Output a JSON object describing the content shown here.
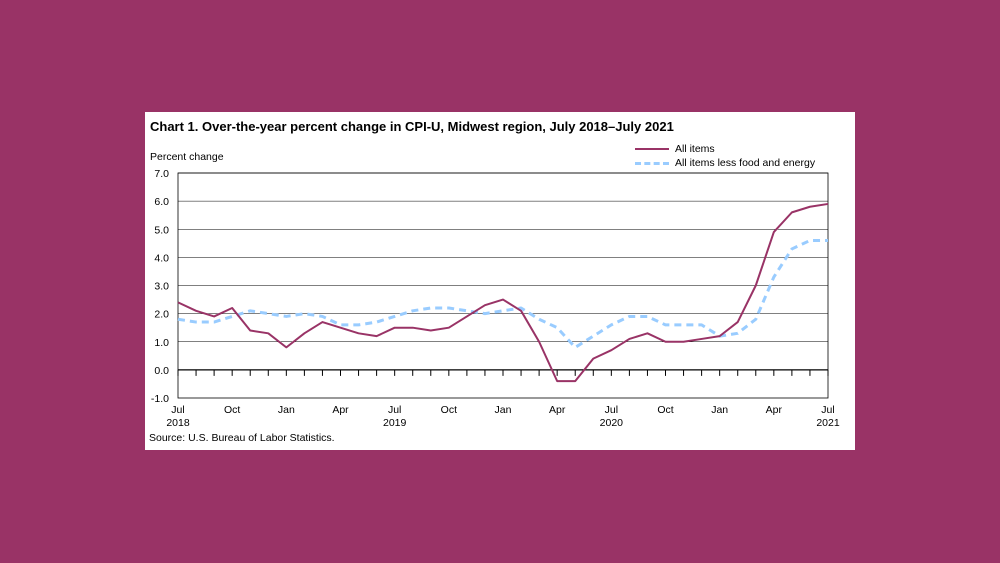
{
  "chart_data": {
    "type": "line",
    "title": "Chart 1. Over-the-year percent change in CPI-U, Midwest region, July 2018–July  2021",
    "ylabel": "Percent change",
    "xlabel": "",
    "ylim": [
      -1.0,
      7.0
    ],
    "yticks": [
      "7.0",
      "6.0",
      "5.0",
      "4.0",
      "3.0",
      "2.0",
      "1.0",
      "0.0",
      "-1.0"
    ],
    "ytick_values": [
      7,
      6,
      5,
      4,
      3,
      2,
      1,
      0,
      -1
    ],
    "grid": true,
    "legend_position": "top-right",
    "x_labels": [
      {
        "index": 0,
        "month": "Jul",
        "year": "2018"
      },
      {
        "index": 3,
        "month": "Oct",
        "year": ""
      },
      {
        "index": 6,
        "month": "Jan",
        "year": ""
      },
      {
        "index": 9,
        "month": "Apr",
        "year": ""
      },
      {
        "index": 12,
        "month": "Jul",
        "year": "2019"
      },
      {
        "index": 15,
        "month": "Oct",
        "year": ""
      },
      {
        "index": 18,
        "month": "Jan",
        "year": ""
      },
      {
        "index": 21,
        "month": "Apr",
        "year": ""
      },
      {
        "index": 24,
        "month": "Jul",
        "year": "2020"
      },
      {
        "index": 27,
        "month": "Oct",
        "year": ""
      },
      {
        "index": 30,
        "month": "Jan",
        "year": ""
      },
      {
        "index": 33,
        "month": "Apr",
        "year": ""
      },
      {
        "index": 36,
        "month": "Jul",
        "year": "2021"
      }
    ],
    "series": [
      {
        "name": "All items",
        "color": "#993366",
        "style": "solid",
        "values": [
          2.4,
          2.1,
          1.9,
          2.2,
          1.4,
          1.3,
          0.8,
          1.3,
          1.7,
          1.5,
          1.3,
          1.2,
          1.5,
          1.5,
          1.4,
          1.5,
          1.9,
          2.3,
          2.5,
          2.1,
          1.0,
          -0.4,
          -0.4,
          0.4,
          0.7,
          1.1,
          1.3,
          1.0,
          1.0,
          1.1,
          1.2,
          1.7,
          3.0,
          4.9,
          5.6,
          5.8,
          5.9
        ]
      },
      {
        "name": "All items less food and energy",
        "color": "#99ccff",
        "style": "dashed",
        "values": [
          1.8,
          1.7,
          1.7,
          1.9,
          2.1,
          2.0,
          1.9,
          2.0,
          1.9,
          1.6,
          1.6,
          1.7,
          1.9,
          2.1,
          2.2,
          2.2,
          2.1,
          2.0,
          2.1,
          2.2,
          1.8,
          1.5,
          0.8,
          1.2,
          1.6,
          1.9,
          1.9,
          1.6,
          1.6,
          1.6,
          1.2,
          1.3,
          1.8,
          3.3,
          4.3,
          4.6,
          4.6
        ]
      }
    ]
  },
  "source": "Source: U.S. Bureau of Labor Statistics."
}
